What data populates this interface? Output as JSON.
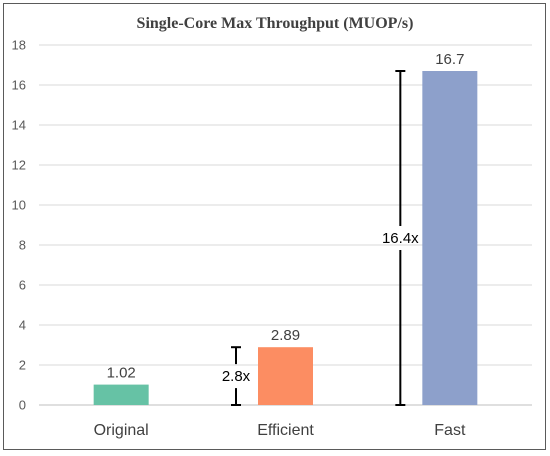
{
  "chart_data": {
    "type": "bar",
    "title": "Single-Core Max Throughput (MUOP/s)",
    "xlabel": "",
    "ylabel": "",
    "categories": [
      "Original",
      "Efficient",
      "Fast"
    ],
    "values": [
      1.02,
      2.89,
      16.7
    ],
    "value_labels": [
      "1.02",
      "2.89",
      "16.7"
    ],
    "ylim": [
      0,
      18
    ],
    "yticks": [
      0,
      2,
      4,
      6,
      8,
      10,
      12,
      14,
      16,
      18
    ],
    "grid": true,
    "legend": "none",
    "colors": [
      "#66c2a5",
      "#fc8d62",
      "#8da0cb"
    ],
    "annotations": [
      {
        "label": "2.8x",
        "category": "Efficient",
        "from": 0,
        "to": 2.89
      },
      {
        "label": "16.4x",
        "category": "Fast",
        "from": 0,
        "to": 16.7
      }
    ]
  }
}
